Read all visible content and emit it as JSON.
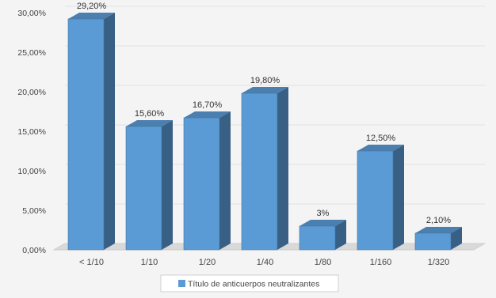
{
  "chart_data": {
    "type": "bar",
    "categories": [
      "< 1/10",
      "1/10",
      "1/20",
      "1/40",
      "1/80",
      "1/160",
      "1/320"
    ],
    "series": [
      {
        "name": "Título de anticuerpos neutralizantes",
        "values": [
          29.2,
          15.6,
          16.7,
          19.8,
          3,
          12.5,
          2.1
        ],
        "data_labels": [
          "29,20%",
          "15,60%",
          "16,70%",
          "19,80%",
          "3%",
          "12,50%",
          "2,10%"
        ],
        "color": "#5b9bd5"
      }
    ],
    "y_ticks": [
      "0,00%",
      "5,00%",
      "10,00%",
      "15,00%",
      "20,00%",
      "25,00%",
      "30,00%"
    ],
    "ylim": [
      0,
      30
    ],
    "grid": true,
    "legend_position": "bottom",
    "bar_style": "3d"
  }
}
